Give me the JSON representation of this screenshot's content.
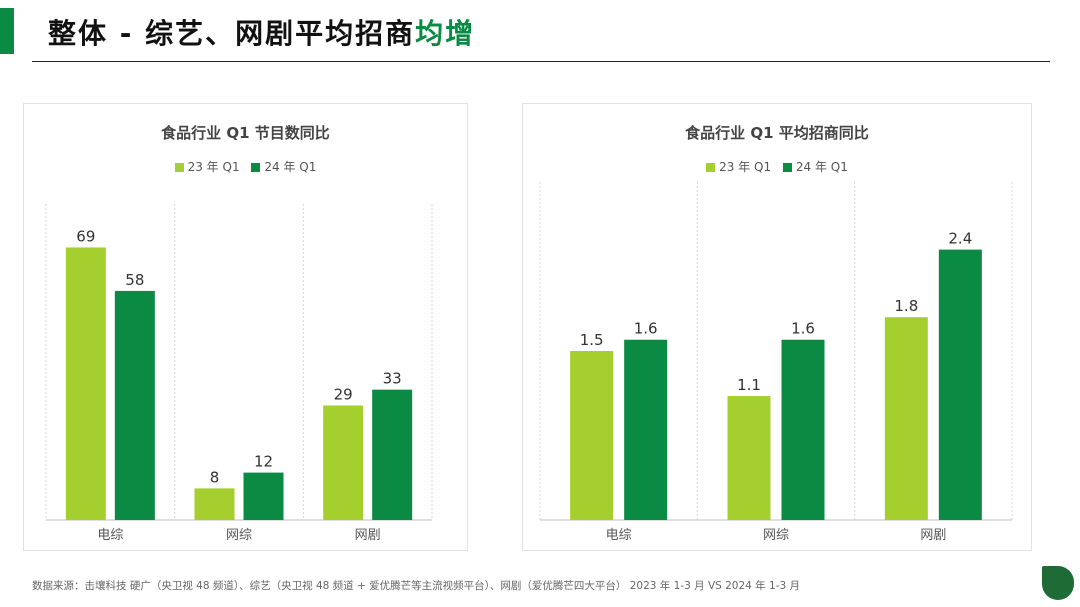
{
  "header": {
    "title_main": "整体 - 综艺、网剧平均招商",
    "title_highlight": "均增"
  },
  "colors": {
    "q1_23": "#a5cf2e",
    "q1_24": "#0a8a43",
    "accent": "#0a8a43"
  },
  "chart_data": [
    {
      "type": "bar",
      "title": "食品行业 Q1 节目数同比",
      "categories": [
        "电综",
        "网综",
        "网剧"
      ],
      "series": [
        {
          "name": "23 年 Q1",
          "values": [
            69,
            8,
            29
          ]
        },
        {
          "name": "24 年 Q1",
          "values": [
            58,
            12,
            33
          ]
        }
      ],
      "value_labels": [
        [
          "69",
          "8",
          "29"
        ],
        [
          "58",
          "12",
          "33"
        ]
      ],
      "ylim": [
        0,
        80
      ],
      "legend": "top"
    },
    {
      "type": "bar",
      "title": "食品行业 Q1 平均招商同比",
      "categories": [
        "电综",
        "网综",
        "网剧"
      ],
      "series": [
        {
          "name": "23 年 Q1",
          "values": [
            1.5,
            1.1,
            1.8
          ]
        },
        {
          "name": "24 年 Q1",
          "values": [
            1.6,
            1.6,
            2.4
          ]
        }
      ],
      "value_labels": [
        [
          "1.5",
          "1.1",
          "1.8"
        ],
        [
          "1.6",
          "1.6",
          "2.4"
        ]
      ],
      "ylim": [
        0,
        3.0
      ],
      "legend": "top"
    }
  ],
  "footnote": "数据来源：击壤科技 硬广（央卫视 48 频道）、综艺（央卫视 48 频道 + 爱优腾芒等主流视频平台）、网剧（爱优腾芒四大平台） 2023 年 1-3 月 VS 2024 年 1-3 月"
}
